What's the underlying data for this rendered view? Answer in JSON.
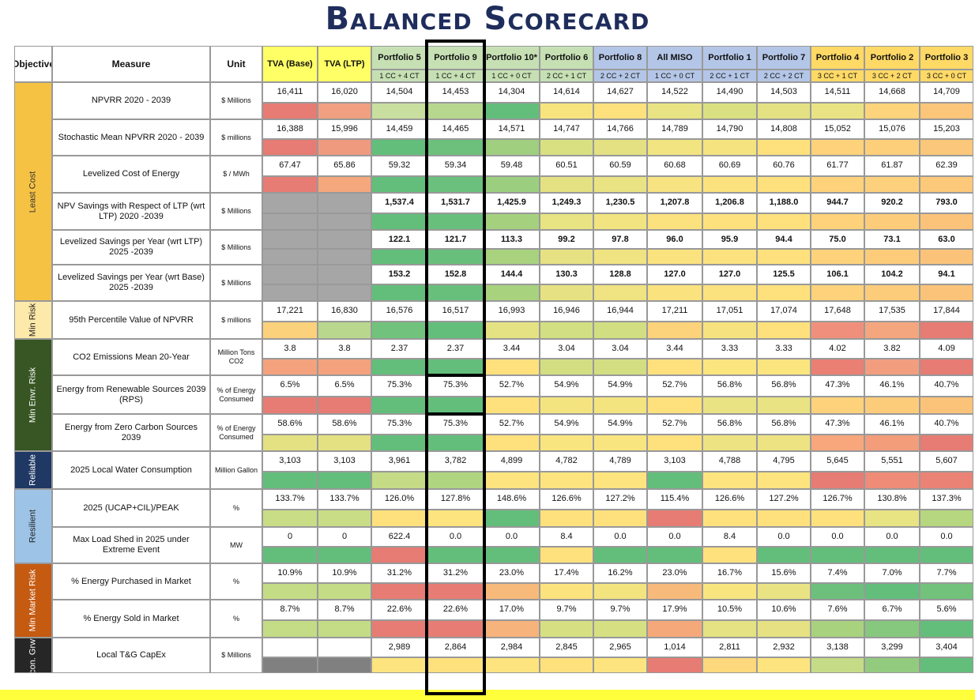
{
  "title": "Balanced Scorecard",
  "header": {
    "objective": "Objective",
    "measure": "Measure",
    "unit": "Unit"
  },
  "columns": [
    {
      "name": "TVA (Base)",
      "config": "",
      "bg": "#ffff66"
    },
    {
      "name": "TVA (LTP)",
      "config": "",
      "bg": "#ffff66"
    },
    {
      "name": "Portfolio 5",
      "config": "1 CC + 4 CT",
      "bg": "#c6e0b4"
    },
    {
      "name": "Portfolio 9",
      "config": "1 CC + 4 CT",
      "bg": "#c6e0b4"
    },
    {
      "name": "Portfolio 10*",
      "config": "1 CC + 0 CT",
      "bg": "#c6e0b4"
    },
    {
      "name": "Portfolio 6",
      "config": "2 CC + 1 CT",
      "bg": "#c6e0b4"
    },
    {
      "name": "Portfolio 8",
      "config": "2 CC + 2 CT",
      "bg": "#b4c6e7"
    },
    {
      "name": "All MISO",
      "config": "1 CC + 0 CT",
      "bg": "#b4c6e7"
    },
    {
      "name": "Portfolio 1",
      "config": "2 CC + 1 CT",
      "bg": "#b4c6e7"
    },
    {
      "name": "Portfolio 7",
      "config": "2 CC + 2 CT",
      "bg": "#b4c6e7"
    },
    {
      "name": "Portfolio 4",
      "config": "3 CC + 1 CT",
      "bg": "#ffd966"
    },
    {
      "name": "Portfolio 2",
      "config": "3 CC + 2 CT",
      "bg": "#ffd966"
    },
    {
      "name": "Portfolio 3",
      "config": "3 CC + 0 CT",
      "bg": "#ffd966"
    }
  ],
  "groups": [
    {
      "label": "Least Cost",
      "bg": "#f6c244",
      "text": "#333333",
      "rows": 6
    },
    {
      "label": "Min Risk",
      "bg": "#fde9a9",
      "text": "#222222",
      "rows": 1
    },
    {
      "label": "Min Envr. Risk",
      "bg": "#375623",
      "text": "#ffffff",
      "rows": 3
    },
    {
      "label": "Reliable",
      "bg": "#1f3864",
      "text": "#ffffff",
      "rows": 1
    },
    {
      "label": "Resilient",
      "bg": "#9dc3e6",
      "text": "#222222",
      "rows": 2
    },
    {
      "label": "Min Market Risk",
      "bg": "#c55a11",
      "text": "#ffffff",
      "rows": 2
    },
    {
      "label": "Econ. Grwth",
      "bg": "#262626",
      "text": "#ffffff",
      "rows": 1
    }
  ],
  "rows": [
    {
      "measure": "NPVRR 2020 - 2039",
      "unit": "$ Millions",
      "bold": false,
      "values": [
        "16,411",
        "16,020",
        "14,504",
        "14,453",
        "14,304",
        "14,614",
        "14,627",
        "14,522",
        "14,490",
        "14,503",
        "14,511",
        "14,668",
        "14,709"
      ],
      "colors": [
        "#e67c73",
        "#f0a080",
        "#c9dfa0",
        "#b8d78e",
        "#63be7b",
        "#f8e47f",
        "#fce17d",
        "#e8e383",
        "#d9e081",
        "#e3e182",
        "#e9e383",
        "#fdd47b",
        "#fbc57a"
      ]
    },
    {
      "measure": "Stochastic Mean NPVRR 2020 - 2039",
      "unit": "$ millions",
      "bold": false,
      "values": [
        "16,388",
        "15,996",
        "14,459",
        "14,465",
        "14,571",
        "14,747",
        "14,766",
        "14,789",
        "14,790",
        "14,808",
        "15,052",
        "15,076",
        "15,203"
      ],
      "colors": [
        "#e67c73",
        "#ef9a7e",
        "#63be7b",
        "#6cc07c",
        "#9fcf7f",
        "#d9e081",
        "#e3e182",
        "#f2e480",
        "#f5e37f",
        "#fee17d",
        "#fed27b",
        "#fdcf7a",
        "#fbc77a"
      ]
    },
    {
      "measure": "Levelized Cost of Energy",
      "unit": "$ / MWh",
      "bold": false,
      "values": [
        "67.47",
        "65.86",
        "59.32",
        "59.34",
        "59.48",
        "60.51",
        "60.59",
        "60.68",
        "60.69",
        "60.76",
        "61.77",
        "61.87",
        "62.39"
      ],
      "colors": [
        "#e67c73",
        "#f4a87c",
        "#63be7b",
        "#6ac07c",
        "#9bcf7f",
        "#e3e182",
        "#eae383",
        "#f7e380",
        "#fbe27e",
        "#fee17d",
        "#fed27b",
        "#fdd07b",
        "#fcc87a"
      ]
    },
    {
      "measure": "NPV Savings with Respect of LTP (wrt LTP) 2020 -2039",
      "unit": "$ Millions",
      "bold": true,
      "values": [
        "",
        "",
        "1,537.4",
        "1,531.7",
        "1,425.9",
        "1,249.3",
        "1,230.5",
        "1,207.8",
        "1,206.8",
        "1,188.0",
        "944.7",
        "920.2",
        "793.0"
      ],
      "colors": [
        "#a6a6a6",
        "#a6a6a6",
        "#63be7b",
        "#68bf7c",
        "#a5d17f",
        "#e8e383",
        "#f2e480",
        "#fbe27e",
        "#fce17d",
        "#fee17d",
        "#fed27b",
        "#fdcc7a",
        "#fbc37a"
      ]
    },
    {
      "measure": "Levelized Savings per Year (wrt LTP) 2025 -2039",
      "unit": "$ Millions",
      "bold": true,
      "values": [
        "",
        "",
        "122.1",
        "121.7",
        "113.3",
        "99.2",
        "97.8",
        "96.0",
        "95.9",
        "94.4",
        "75.0",
        "73.1",
        "63.0"
      ],
      "colors": [
        "#a6a6a6",
        "#a6a6a6",
        "#63be7b",
        "#68bf7c",
        "#a9d27f",
        "#e6e283",
        "#f0e381",
        "#fae27e",
        "#fbe27e",
        "#fee17d",
        "#fed27b",
        "#fdcc7a",
        "#fbc37a"
      ]
    },
    {
      "measure": "Levelized Savings per Year (wrt Base) 2025 -2039",
      "unit": "$ Millions",
      "bold": true,
      "values": [
        "",
        "",
        "153.2",
        "152.8",
        "144.4",
        "130.3",
        "128.8",
        "127.0",
        "127.0",
        "125.5",
        "106.1",
        "104.2",
        "94.1"
      ],
      "colors": [
        "#a6a6a6",
        "#a6a6a6",
        "#63be7b",
        "#68bf7c",
        "#a9d27f",
        "#e6e283",
        "#f0e381",
        "#fae27e",
        "#fbe27e",
        "#fee17d",
        "#fed27b",
        "#fdcc7a",
        "#fbc37a"
      ]
    },
    {
      "measure": "95th Percentile Value of NPVRR",
      "unit": "$ millions",
      "bold": false,
      "values": [
        "17,221",
        "16,830",
        "16,576",
        "16,517",
        "16,993",
        "16,946",
        "16,944",
        "17,211",
        "17,051",
        "17,074",
        "17,648",
        "17,535",
        "17,844"
      ],
      "colors": [
        "#fcd17b",
        "#b9d88d",
        "#71c27c",
        "#63be7b",
        "#e5e283",
        "#d2df82",
        "#d1de82",
        "#fcd27b",
        "#f6e37f",
        "#fee07d",
        "#f0907c",
        "#f4a67f",
        "#e67c73"
      ]
    },
    {
      "measure": "CO2 Emissions Mean 20-Year",
      "unit": "Million Tons CO2",
      "bold": false,
      "values": [
        "3.8",
        "3.8",
        "2.37",
        "2.37",
        "3.44",
        "3.04",
        "3.04",
        "3.44",
        "3.33",
        "3.33",
        "4.02",
        "3.82",
        "4.09"
      ],
      "colors": [
        "#f4a27e",
        "#f4a27e",
        "#63be7b",
        "#63be7b",
        "#fee17d",
        "#d3de82",
        "#d3de82",
        "#fee17d",
        "#fbe57f",
        "#fbe57f",
        "#ea7f74",
        "#f29e7e",
        "#e67c73"
      ]
    },
    {
      "measure": "Energy from Renewable Sources 2039 (RPS)",
      "unit": "% of Energy Consumed",
      "bold": false,
      "values": [
        "6.5%",
        "6.5%",
        "75.3%",
        "75.3%",
        "52.7%",
        "54.9%",
        "54.9%",
        "52.7%",
        "56.8%",
        "56.8%",
        "47.3%",
        "46.1%",
        "40.7%"
      ],
      "colors": [
        "#e67c73",
        "#e67c73",
        "#63be7b",
        "#63be7b",
        "#fee17d",
        "#f3e480",
        "#f3e480",
        "#fee17d",
        "#e9e383",
        "#e9e383",
        "#fed27b",
        "#fdcc7a",
        "#fbc37a"
      ]
    },
    {
      "measure": "Energy from Zero Carbon Sources 2039",
      "unit": "% of Energy Consumed",
      "bold": false,
      "values": [
        "58.6%",
        "58.6%",
        "75.3%",
        "75.3%",
        "52.7%",
        "54.9%",
        "54.9%",
        "52.7%",
        "56.8%",
        "56.8%",
        "47.3%",
        "46.1%",
        "40.7%"
      ],
      "colors": [
        "#e3e182",
        "#e3e182",
        "#63be7b",
        "#63be7b",
        "#fee17d",
        "#f8e57f",
        "#f8e57f",
        "#fee17d",
        "#eee383",
        "#eee383",
        "#f8a67c",
        "#f49d7b",
        "#e67c73"
      ]
    },
    {
      "measure": "2025 Local Water Consumption",
      "unit": "Million Gallon",
      "bold": false,
      "values": [
        "3,103",
        "3,103",
        "3,961",
        "3,782",
        "4,899",
        "4,782",
        "4,789",
        "3,103",
        "4,788",
        "4,795",
        "5,645",
        "5,551",
        "5,607"
      ],
      "colors": [
        "#63be7b",
        "#63be7b",
        "#c5db86",
        "#b0d580",
        "#fde47e",
        "#fde47e",
        "#fde47e",
        "#63be7b",
        "#fde47e",
        "#fde47e",
        "#e67c73",
        "#ee8c77",
        "#ea8375"
      ]
    },
    {
      "measure": "2025 (UCAP+CIL)/PEAK",
      "unit": "%",
      "bold": false,
      "values": [
        "133.7%",
        "133.7%",
        "126.0%",
        "127.8%",
        "148.6%",
        "126.6%",
        "127.2%",
        "115.4%",
        "126.6%",
        "127.2%",
        "126.7%",
        "130.8%",
        "137.3%"
      ],
      "colors": [
        "#c9dd86",
        "#c9dd86",
        "#fee17d",
        "#fde47e",
        "#63be7b",
        "#fee17d",
        "#fee17d",
        "#e67c73",
        "#fee17d",
        "#fee17d",
        "#fee17d",
        "#e8e383",
        "#b6d77f"
      ]
    },
    {
      "measure": "Max Load Shed in 2025 under Extreme Event",
      "unit": "MW",
      "bold": false,
      "values": [
        "0",
        "0",
        "622.4",
        "0.0",
        "0.0",
        "8.4",
        "0.0",
        "0.0",
        "8.4",
        "0.0",
        "0.0",
        "0.0",
        "0.0"
      ],
      "colors": [
        "#63be7b",
        "#63be7b",
        "#e67c73",
        "#63be7b",
        "#63be7b",
        "#fee17d",
        "#63be7b",
        "#63be7b",
        "#fee17d",
        "#63be7b",
        "#63be7b",
        "#63be7b",
        "#63be7b"
      ]
    },
    {
      "measure": "% Energy Purchased in Market",
      "unit": "%",
      "bold": false,
      "values": [
        "10.9%",
        "10.9%",
        "31.2%",
        "31.2%",
        "23.0%",
        "17.4%",
        "16.2%",
        "23.0%",
        "16.7%",
        "15.6%",
        "7.4%",
        "7.0%",
        "7.7%"
      ],
      "colors": [
        "#c4dc86",
        "#c4dc86",
        "#e67c73",
        "#e67c73",
        "#f8ba7a",
        "#fde37e",
        "#f3e480",
        "#f8ba7a",
        "#f8e57f",
        "#e9e383",
        "#6cc07c",
        "#63be7b",
        "#72c27c"
      ]
    },
    {
      "measure": "% Energy Sold in Market",
      "unit": "%",
      "bold": false,
      "values": [
        "8.7%",
        "8.7%",
        "22.6%",
        "22.6%",
        "17.0%",
        "9.7%",
        "9.7%",
        "17.9%",
        "10.5%",
        "10.6%",
        "7.6%",
        "6.7%",
        "5.6%"
      ],
      "colors": [
        "#c4dc86",
        "#c4dc86",
        "#e67c73",
        "#e67c73",
        "#f6b37c",
        "#d6e082",
        "#d6e082",
        "#f5a97b",
        "#e4e282",
        "#e6e283",
        "#a9d27f",
        "#86c87d",
        "#63be7b"
      ]
    },
    {
      "measure": "Local T&G CapEx",
      "unit": "$ Millions",
      "bold": false,
      "values": [
        "",
        "",
        "2,989",
        "2,864",
        "2,984",
        "2,845",
        "2,965",
        "1,014",
        "2,811",
        "2,932",
        "3,138",
        "3,299",
        "3,404"
      ],
      "colors": [
        "#808080",
        "#808080",
        "#fde47e",
        "#fee17d",
        "#fde47e",
        "#fee17d",
        "#fde47e",
        "#e67c73",
        "#fdd87c",
        "#fde47e",
        "#c5db86",
        "#93cb7e",
        "#63be7b"
      ]
    }
  ]
}
